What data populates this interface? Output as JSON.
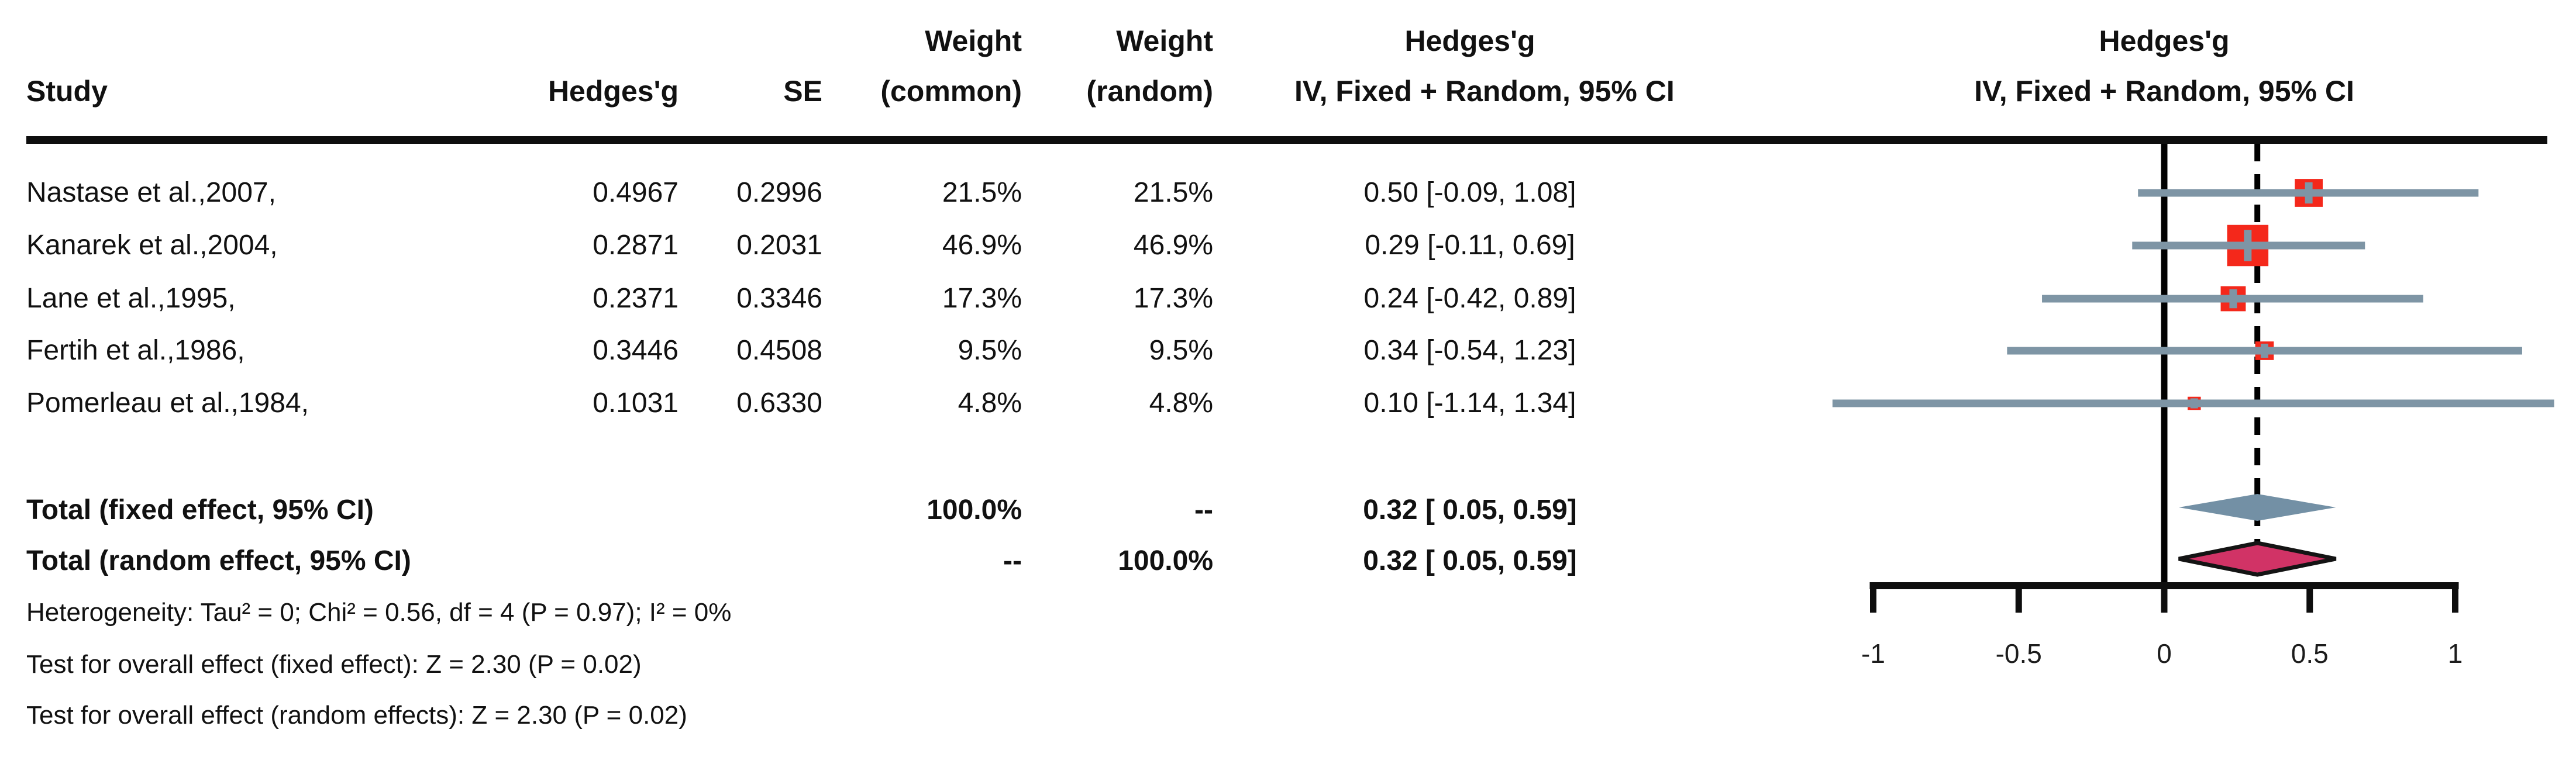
{
  "table": {
    "headers": {
      "study": "Study",
      "hedges_g": "Hedges'g",
      "se": "SE",
      "weight_common_line1": "Weight",
      "weight_common_line2": "(common)",
      "weight_random_line1": "Weight",
      "weight_random_line2": "(random)",
      "ci_line1": "Hedges'g",
      "ci_line2": "IV, Fixed + Random, 95% CI",
      "plot_line1": "Hedges'g",
      "plot_line2": "IV, Fixed + Random, 95% CI"
    },
    "rows": [
      {
        "study": "Nastase et al.,2007,",
        "hedges_g": "0.4967",
        "se": "0.2996",
        "weight_common": "21.5%",
        "weight_random": "21.5%",
        "ci_text": "0.50 [-0.09, 1.08]"
      },
      {
        "study": "Kanarek et al.,2004,",
        "hedges_g": "0.2871",
        "se": "0.2031",
        "weight_common": "46.9%",
        "weight_random": "46.9%",
        "ci_text": "0.29 [-0.11, 0.69]"
      },
      {
        "study": "Lane et al.,1995,",
        "hedges_g": "0.2371",
        "se": "0.3346",
        "weight_common": "17.3%",
        "weight_random": "17.3%",
        "ci_text": "0.24 [-0.42, 0.89]"
      },
      {
        "study": "Fertih et al.,1986,",
        "hedges_g": "0.3446",
        "se": "0.4508",
        "weight_common": "9.5%",
        "weight_random": "9.5%",
        "ci_text": "0.34 [-0.54, 1.23]"
      },
      {
        "study": "Pomerleau et al.,1984,",
        "hedges_g": "0.1031",
        "se": "0.6330",
        "weight_common": "4.8%",
        "weight_random": "4.8%",
        "ci_text": "0.10 [-1.14, 1.34]"
      }
    ],
    "totals": [
      {
        "label": "Total (fixed effect, 95% CI)",
        "weight_common": "100.0%",
        "weight_random": "--",
        "ci_text": "0.32 [ 0.05, 0.59]"
      },
      {
        "label": "Total (random effect, 95% CI)",
        "weight_common": "--",
        "weight_random": "100.0%",
        "ci_text": "0.32 [ 0.05, 0.59]"
      }
    ],
    "footnotes": [
      "Heterogeneity: Tau² = 0; Chi² = 0.56, df = 4 (P = 0.97); I² = 0%",
      "Test for overall effect (fixed effect): Z = 2.30 (P = 0.02)",
      "Test for overall effect (random effects): Z = 2.30 (P = 0.02)"
    ]
  },
  "chart_data": {
    "type": "forest",
    "effect_measure": "Hedges'g",
    "x_axis": {
      "range": [
        -1,
        1
      ],
      "ticks": [
        -1,
        -0.5,
        0,
        0.5,
        1
      ],
      "tick_labels": [
        "-1",
        "-0.5",
        "0",
        "0.5",
        "1"
      ]
    },
    "zero_line": 0,
    "overall_effect_dashed_line": 0.32,
    "studies": [
      {
        "name": "Nastase et al.,2007,",
        "estimate": 0.4967,
        "ci_low": -0.09,
        "ci_high": 1.08,
        "weight_pct": 21.5
      },
      {
        "name": "Kanarek et al.,2004,",
        "estimate": 0.2871,
        "ci_low": -0.11,
        "ci_high": 0.69,
        "weight_pct": 46.9
      },
      {
        "name": "Lane et al.,1995,",
        "estimate": 0.2371,
        "ci_low": -0.42,
        "ci_high": 0.89,
        "weight_pct": 17.3
      },
      {
        "name": "Fertih et al.,1986,",
        "estimate": 0.3446,
        "ci_low": -0.54,
        "ci_high": 1.23,
        "weight_pct": 9.5
      },
      {
        "name": "Pomerleau et al.,1984,",
        "estimate": 0.1031,
        "ci_low": -1.14,
        "ci_high": 1.34,
        "weight_pct": 4.8
      }
    ],
    "diamonds": [
      {
        "name": "fixed effect",
        "estimate": 0.32,
        "ci_low": 0.05,
        "ci_high": 0.59,
        "fill": "#7390a5",
        "border": "none"
      },
      {
        "name": "random effect",
        "estimate": 0.32,
        "ci_low": 0.05,
        "ci_high": 0.59,
        "fill": "#d13366",
        "border": "#141414"
      }
    ],
    "colors": {
      "square": "#f4281b",
      "ci_line": "#7e95a5",
      "marker_cross": "#7e95a5",
      "axis": "#0e0e0e"
    }
  }
}
